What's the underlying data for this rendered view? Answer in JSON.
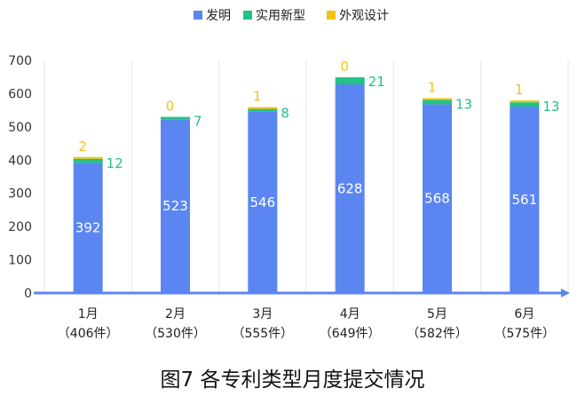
{
  "caption": "图7 各专利类型月度提交情况",
  "colors": {
    "invention": "#5B86F1",
    "utility": "#1FC383",
    "design": "#F6C20F",
    "axis": "#5B86F1",
    "grid": "#E6E6E6",
    "tick_text": "#333333",
    "bar_label_inside": "#ffffff"
  },
  "chart_data": {
    "type": "bar",
    "stacked": true,
    "title": "",
    "xlabel": "",
    "ylabel": "",
    "ylim": [
      0,
      700
    ],
    "yticks": [
      0,
      100,
      200,
      300,
      400,
      500,
      600,
      700
    ],
    "grid": true,
    "legend_position": "top-center",
    "categories": [
      "1月",
      "2月",
      "3月",
      "4月",
      "5月",
      "6月"
    ],
    "category_totals": [
      "（406件）",
      "（530件）",
      "（555件）",
      "（649件）",
      "（582件）",
      "（575件）"
    ],
    "series": [
      {
        "name": "发明",
        "values": [
          392,
          523,
          546,
          628,
          568,
          561
        ]
      },
      {
        "name": "实用新型",
        "values": [
          12,
          7,
          8,
          21,
          13,
          13
        ]
      },
      {
        "name": "外观设计",
        "values": [
          2,
          0,
          1,
          0,
          1,
          1
        ]
      }
    ]
  }
}
